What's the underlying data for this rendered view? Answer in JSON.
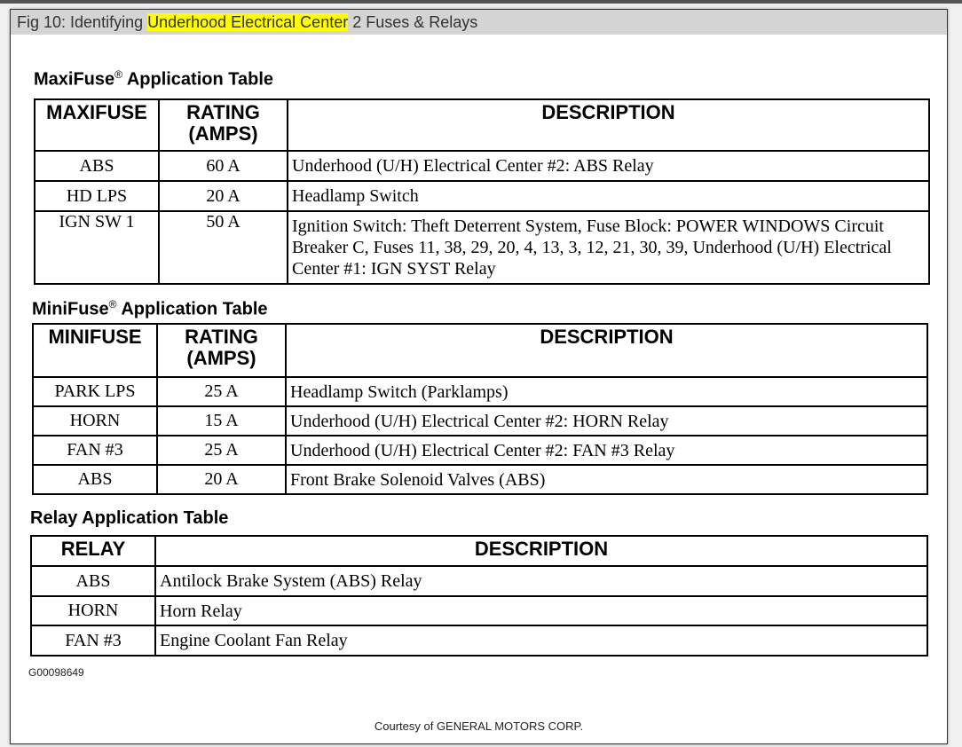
{
  "title": {
    "prefix": "Fig 10: Identifying ",
    "highlight": "Underhood Electrical Center",
    "suffix": " 2 Fuses & Relays"
  },
  "maxi": {
    "title": "MaxiFuse",
    "reg": "®",
    "title_suffix": " Application Table",
    "headers": [
      "MAXIFUSE",
      "RATING (AMPS)",
      "DESCRIPTION"
    ],
    "rows": [
      {
        "fuse": "ABS",
        "rating": "60 A",
        "desc": "Underhood (U/H) Electrical Center #2: ABS Relay"
      },
      {
        "fuse": "HD LPS",
        "rating": "20 A",
        "desc": "Headlamp Switch"
      },
      {
        "fuse": "IGN SW 1",
        "rating": "50 A",
        "desc": "Ignition Switch: Theft Deterrent System, Fuse Block: POWER WINDOWS Circuit Breaker C, Fuses 11, 38, 29, 20, 4, 13, 3, 12, 21, 30, 39, Underhood (U/H) Electrical Center #1: IGN SYST Relay"
      }
    ]
  },
  "mini": {
    "title": "MiniFuse",
    "reg": "®",
    "title_suffix": " Application Table",
    "headers": [
      "MINIFUSE",
      "RATING (AMPS)",
      "DESCRIPTION"
    ],
    "rows": [
      {
        "fuse": "PARK LPS",
        "rating": "25 A",
        "desc": "Headlamp Switch (Parklamps)"
      },
      {
        "fuse": "HORN",
        "rating": "15 A",
        "desc": "Underhood (U/H) Electrical Center #2: HORN Relay"
      },
      {
        "fuse": "FAN #3",
        "rating": "25 A",
        "desc": "Underhood (U/H) Electrical Center #2: FAN #3 Relay"
      },
      {
        "fuse": "ABS",
        "rating": "20 A",
        "desc": "Front Brake Solenoid Valves (ABS)"
      }
    ]
  },
  "relay": {
    "title": "Relay Application Table",
    "headers": [
      "RELAY",
      "DESCRIPTION"
    ],
    "rows": [
      {
        "relay": "ABS",
        "desc": "Antilock Brake System (ABS) Relay"
      },
      {
        "relay": "HORN",
        "desc": "Horn Relay"
      },
      {
        "relay": "FAN #3",
        "desc": "Engine Coolant Fan Relay"
      }
    ]
  },
  "figure_id": "G00098649",
  "courtesy": "Courtesy of GENERAL MOTORS CORP."
}
